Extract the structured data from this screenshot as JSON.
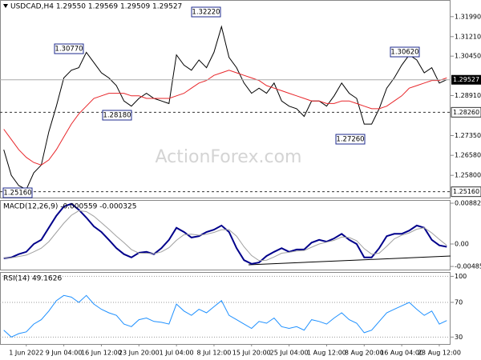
{
  "chart_data": [
    {
      "type": "line",
      "title": "USDCAD,H4 1.29550 1.29569 1.29509 1.29527",
      "watermark": "ActionForex.com",
      "series": [
        {
          "color": "#000000",
          "values": [
            1.268,
            1.258,
            1.254,
            1.2525,
            1.259,
            1.262,
            1.275,
            1.285,
            1.296,
            1.299,
            1.3,
            1.306,
            1.302,
            1.298,
            1.296,
            1.293,
            1.287,
            1.285,
            1.288,
            1.29,
            1.288,
            1.287,
            1.286,
            1.305,
            1.301,
            1.299,
            1.303,
            1.3,
            1.306,
            1.316,
            1.304,
            1.3,
            1.294,
            1.29,
            1.292,
            1.29,
            1.294,
            1.287,
            1.285,
            1.284,
            1.281,
            1.287,
            1.287,
            1.285,
            1.289,
            1.294,
            1.29,
            1.288,
            1.278,
            1.278,
            1.284,
            1.292,
            1.296,
            1.301,
            1.305,
            1.303,
            1.298,
            1.3,
            1.294,
            1.2953
          ]
        },
        {
          "color": "#e8262a",
          "values": [
            1.276,
            1.272,
            1.268,
            1.265,
            1.263,
            1.262,
            1.264,
            1.268,
            1.273,
            1.278,
            1.282,
            1.285,
            1.288,
            1.289,
            1.29,
            1.29,
            1.29,
            1.289,
            1.289,
            1.288,
            1.288,
            1.288,
            1.288,
            1.289,
            1.29,
            1.292,
            1.294,
            1.295,
            1.297,
            1.298,
            1.299,
            1.298,
            1.297,
            1.296,
            1.295,
            1.293,
            1.292,
            1.291,
            1.29,
            1.289,
            1.288,
            1.287,
            1.287,
            1.286,
            1.286,
            1.287,
            1.287,
            1.286,
            1.285,
            1.284,
            1.284,
            1.285,
            1.287,
            1.289,
            1.292,
            1.293,
            1.294,
            1.295,
            1.295,
            1.296
          ]
        }
      ],
      "ylim": [
        1.249,
        1.3264
      ],
      "yticks": [
        {
          "value": 1.3199,
          "label": "1.31990"
        },
        {
          "value": 1.3121,
          "label": "1.31210"
        },
        {
          "value": 1.3045,
          "label": "1.30450"
        },
        {
          "value": 1.2891,
          "label": "1.28910"
        },
        {
          "value": 1.2735,
          "label": "1.27350"
        },
        {
          "value": 1.2658,
          "label": "1.26580"
        },
        {
          "value": 1.258,
          "label": "1.25800"
        }
      ],
      "levels": [
        {
          "value": 1.2826,
          "label": "1.28260"
        },
        {
          "value": 1.2516,
          "label": "1.25160"
        }
      ],
      "current": 1.29527,
      "annotations": [
        "1.32220",
        "1.30770",
        "1.28180",
        "1.25160",
        "1.27260",
        "1.30620"
      ],
      "grid": false
    },
    {
      "type": "line",
      "title": "MACD(12,26,9) -0.000559 -0.000325",
      "series": [
        {
          "color": "#00008b",
          "values": [
            -0.0031,
            -0.0029,
            -0.0022,
            -0.0017,
            0,
            0.0009,
            0.0035,
            0.0061,
            0.0081,
            0.0087,
            0.0074,
            0.0057,
            0.0038,
            0.0026,
            0.0009,
            -0.0009,
            -0.0022,
            -0.0029,
            -0.0019,
            -0.0017,
            -0.0022,
            -0.0009,
            0.0009,
            0.0035,
            0.0026,
            0.0014,
            0.0017,
            0.0026,
            0.0031,
            0.004,
            0.0026,
            -0.0009,
            -0.0035,
            -0.0043,
            -0.004,
            -0.0026,
            -0.0017,
            -0.0009,
            -0.0017,
            -0.0012,
            -0.0012,
            0.0003,
            0.0009,
            0.0005,
            0.0012,
            0.0022,
            0.0009,
            0,
            -0.0029,
            -0.0029,
            -0.0009,
            0.0017,
            0.0022,
            0.0022,
            0.0029,
            0.004,
            0.0035,
            0.0009,
            -0.0003,
            -0.0006
          ]
        },
        {
          "color": "#a0a0a0",
          "values": [
            -0.003,
            -0.003,
            -0.0027,
            -0.0024,
            -0.0017,
            -0.0009,
            0.0005,
            0.0025,
            0.0045,
            0.0062,
            0.0072,
            0.007,
            0.006,
            0.0046,
            0.0032,
            0.0017,
            0.0003,
            -0.0012,
            -0.002,
            -0.002,
            -0.0021,
            -0.0017,
            -0.0008,
            0.0008,
            0.002,
            0.0021,
            0.0019,
            0.0021,
            0.0025,
            0.0031,
            0.0031,
            0.0017,
            -0.0006,
            -0.0025,
            -0.0036,
            -0.0035,
            -0.0028,
            -0.002,
            -0.0018,
            -0.0015,
            -0.0014,
            -0.0007,
            0,
            0.0004,
            0.0008,
            0.0015,
            0.0014,
            0.0007,
            -0.001,
            -0.0022,
            -0.002,
            -0.0005,
            0.0011,
            0.0019,
            0.0024,
            0.0032,
            0.0035,
            0.0024,
            0.001,
            -0.0003
          ]
        }
      ],
      "ylim": [
        -0.00571,
        0.00951
      ],
      "yticks": [
        0.00882,
        {
          "value": 0,
          "label": "0.00"
        },
        -0.004858
      ],
      "grid": false
    },
    {
      "type": "line",
      "title": "RSI(14) 49.1626",
      "categories": [
        null,
        null,
        null,
        "1 Jun 2022",
        null,
        null,
        null,
        null,
        "9 Jun 04:00",
        null,
        null,
        null,
        null,
        "16 Jun 12:00",
        null,
        null,
        null,
        null,
        "23 Jun 20:00",
        null,
        null,
        null,
        null,
        "1 Jul 04:00",
        null,
        null,
        null,
        null,
        "8 Jul 12:00",
        null,
        null,
        null,
        null,
        "15 Jul 20:00",
        null,
        null,
        null,
        null,
        "25 Jul 04:00",
        null,
        null,
        null,
        null,
        "1 Aug 12:00",
        null,
        null,
        null,
        null,
        "8 Aug 20:00",
        null,
        null,
        null,
        null,
        "16 Aug 04:00",
        null,
        null,
        null,
        null,
        "23 Aug 12:00",
        null
      ],
      "series": [
        {
          "color": "#1e90ff",
          "values": [
            38,
            30,
            34,
            36,
            45,
            50,
            60,
            72,
            78,
            76,
            70,
            78,
            68,
            62,
            58,
            55,
            45,
            42,
            50,
            52,
            48,
            47,
            45,
            68,
            60,
            55,
            62,
            58,
            65,
            72,
            55,
            50,
            45,
            40,
            48,
            46,
            52,
            42,
            40,
            42,
            38,
            50,
            48,
            45,
            52,
            58,
            50,
            46,
            35,
            38,
            48,
            58,
            62,
            66,
            70,
            62,
            55,
            60,
            45,
            49
          ]
        }
      ],
      "ylim": [
        22,
        105
      ],
      "yticks": [
        100,
        70,
        30
      ],
      "grid": true
    }
  ]
}
